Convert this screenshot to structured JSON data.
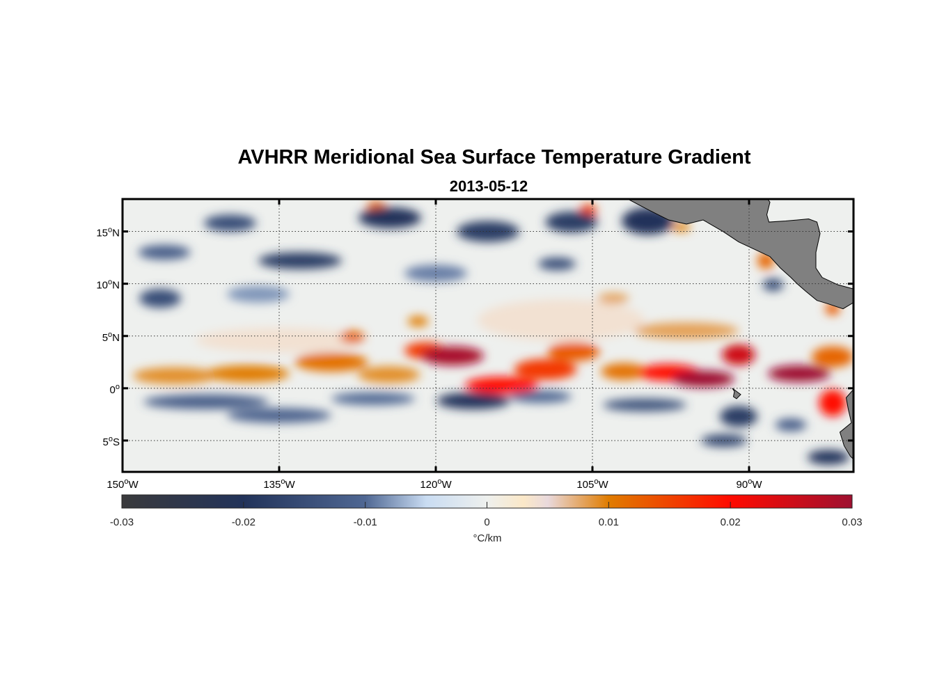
{
  "chart_data": {
    "type": "heatmap",
    "title": "AVHRR Meridional Sea Surface Temperature Gradient",
    "subtitle": "2013-05-12",
    "lon_range": [
      -150,
      -80
    ],
    "lat_range": [
      -8,
      18.1
    ],
    "x_ticks": [
      {
        "lon": -150,
        "deg": "150",
        "hem": "W"
      },
      {
        "lon": -135,
        "deg": "135",
        "hem": "W"
      },
      {
        "lon": -120,
        "deg": "120",
        "hem": "W"
      },
      {
        "lon": -105,
        "deg": "105",
        "hem": "W"
      },
      {
        "lon": -90,
        "deg": "90",
        "hem": "W"
      }
    ],
    "y_ticks": [
      {
        "lat": 15,
        "deg": "15",
        "hem": "N"
      },
      {
        "lat": 10,
        "deg": "10",
        "hem": "N"
      },
      {
        "lat": 5,
        "deg": "5",
        "hem": "N"
      },
      {
        "lat": 0,
        "deg": "0",
        "hem": ""
      },
      {
        "lat": -5,
        "deg": "5",
        "hem": "S"
      }
    ],
    "grid": true,
    "colorbar": {
      "range": [
        -0.03,
        0.03
      ],
      "ticks": [
        "-0.03",
        "-0.02",
        "-0.01",
        "0",
        "0.01",
        "0.02",
        "0.03"
      ],
      "tick_values": [
        -0.03,
        -0.02,
        -0.01,
        0,
        0.01,
        0.02,
        0.03
      ],
      "label": "°C/km",
      "placement": "bottom",
      "stops": [
        [
          -0.03,
          "#3a3a3c"
        ],
        [
          -0.02,
          "#22335a"
        ],
        [
          -0.01,
          "#4f6793"
        ],
        [
          -0.005,
          "#c9dcf2"
        ],
        [
          0,
          "#eef0ee"
        ],
        [
          0.003,
          "#fbe8c8"
        ],
        [
          0.005,
          "#e9d9dc"
        ],
        [
          0.01,
          "#e07c00"
        ],
        [
          0.02,
          "#ff0a00"
        ],
        [
          0.03,
          "#9e1030"
        ]
      ]
    },
    "background_value": 0,
    "features": [
      {
        "lon": -118.4,
        "lat": 3.1,
        "v": 0.029,
        "rlon": 3.0,
        "rlat": 0.9
      },
      {
        "lon": -121.0,
        "lat": 3.6,
        "v": 0.016,
        "rlon": 2.0,
        "rlat": 0.8
      },
      {
        "lon": -113.7,
        "lat": 0.3,
        "v": 0.02,
        "rlon": 3.5,
        "rlat": 0.8
      },
      {
        "lon": -109.5,
        "lat": 1.8,
        "v": 0.016,
        "rlon": 3.0,
        "rlat": 1.0
      },
      {
        "lon": -106.8,
        "lat": 3.5,
        "v": 0.013,
        "rlon": 2.5,
        "rlat": 0.9
      },
      {
        "lon": -102.0,
        "lat": 1.6,
        "v": 0.011,
        "rlon": 2.2,
        "rlat": 0.8
      },
      {
        "lon": -97.7,
        "lat": 1.5,
        "v": 0.02,
        "rlon": 3.0,
        "rlat": 0.8
      },
      {
        "lon": -94.4,
        "lat": 0.9,
        "v": 0.03,
        "rlon": 3.0,
        "rlat": 0.8
      },
      {
        "lon": -91.0,
        "lat": 3.2,
        "v": 0.025,
        "rlon": 1.6,
        "rlat": 1.0
      },
      {
        "lon": -85.2,
        "lat": 1.4,
        "v": 0.03,
        "rlon": 3.0,
        "rlat": 0.8
      },
      {
        "lon": -82.0,
        "lat": 3.0,
        "v": 0.012,
        "rlon": 2.0,
        "rlat": 1.0
      },
      {
        "lon": -82.0,
        "lat": -1.4,
        "v": 0.02,
        "rlon": 1.3,
        "rlat": 1.3
      },
      {
        "lon": -145.0,
        "lat": 1.2,
        "v": 0.009,
        "rlon": 4.0,
        "rlat": 0.8
      },
      {
        "lon": -138.0,
        "lat": 1.4,
        "v": 0.01,
        "rlon": 4.0,
        "rlat": 0.8
      },
      {
        "lon": -130.0,
        "lat": 2.5,
        "v": 0.011,
        "rlon": 3.5,
        "rlat": 0.9
      },
      {
        "lon": -124.5,
        "lat": 1.3,
        "v": 0.009,
        "rlon": 3.0,
        "rlat": 0.8
      },
      {
        "lon": -128.0,
        "lat": 4.9,
        "v": 0.012,
        "rlon": 1.2,
        "rlat": 0.6
      },
      {
        "lon": -121.7,
        "lat": 6.4,
        "v": 0.01,
        "rlon": 1.0,
        "rlat": 0.5
      },
      {
        "lon": -135.0,
        "lat": 4.6,
        "v": 0.004,
        "rlon": 8.0,
        "rlat": 1.2
      },
      {
        "lon": -108.0,
        "lat": 6.5,
        "v": 0.004,
        "rlon": 8.0,
        "rlat": 2.0
      },
      {
        "lon": -96.0,
        "lat": 5.5,
        "v": 0.008,
        "rlon": 5.0,
        "rlat": 0.8
      },
      {
        "lon": -103.0,
        "lat": 8.6,
        "v": 0.008,
        "rlon": 1.5,
        "rlat": 0.5
      },
      {
        "lon": -142.0,
        "lat": -1.3,
        "v": -0.012,
        "rlon": 6.0,
        "rlat": 0.7
      },
      {
        "lon": -135.0,
        "lat": -2.6,
        "v": -0.011,
        "rlon": 5.0,
        "rlat": 0.7
      },
      {
        "lon": -126.0,
        "lat": -1.0,
        "v": -0.01,
        "rlon": 4.0,
        "rlat": 0.6
      },
      {
        "lon": -116.4,
        "lat": -1.2,
        "v": -0.02,
        "rlon": 3.5,
        "rlat": 0.8
      },
      {
        "lon": -110.0,
        "lat": -0.8,
        "v": -0.01,
        "rlon": 3.0,
        "rlat": 0.6
      },
      {
        "lon": -100.0,
        "lat": -1.6,
        "v": -0.014,
        "rlon": 4.0,
        "rlat": 0.6
      },
      {
        "lon": -91.0,
        "lat": -2.7,
        "v": -0.018,
        "rlon": 1.8,
        "rlat": 1.0
      },
      {
        "lon": -92.4,
        "lat": -5.0,
        "v": -0.016,
        "rlon": 2.2,
        "rlat": 0.6
      },
      {
        "lon": -82.4,
        "lat": -6.6,
        "v": -0.02,
        "rlon": 2.0,
        "rlat": 0.7
      },
      {
        "lon": -86.0,
        "lat": -3.5,
        "v": -0.012,
        "rlon": 1.5,
        "rlat": 0.6
      },
      {
        "lon": -133.0,
        "lat": 12.2,
        "v": -0.018,
        "rlon": 4.0,
        "rlat": 0.8
      },
      {
        "lon": -146.4,
        "lat": 8.6,
        "v": -0.015,
        "rlon": 2.0,
        "rlat": 0.9
      },
      {
        "lon": -124.4,
        "lat": 16.3,
        "v": -0.02,
        "rlon": 3.0,
        "rlat": 1.0
      },
      {
        "lon": -115.0,
        "lat": 15.0,
        "v": -0.018,
        "rlon": 3.0,
        "rlat": 1.0
      },
      {
        "lon": -107.0,
        "lat": 15.9,
        "v": -0.018,
        "rlon": 2.5,
        "rlat": 1.0
      },
      {
        "lon": -99.7,
        "lat": 16.0,
        "v": -0.02,
        "rlon": 2.5,
        "rlat": 1.3
      },
      {
        "lon": -139.7,
        "lat": 15.8,
        "v": -0.015,
        "rlon": 2.5,
        "rlat": 0.8
      },
      {
        "lon": -146.0,
        "lat": 13.0,
        "v": -0.012,
        "rlon": 2.5,
        "rlat": 0.7
      },
      {
        "lon": -108.4,
        "lat": 11.9,
        "v": -0.015,
        "rlon": 1.8,
        "rlat": 0.6
      },
      {
        "lon": -120.0,
        "lat": 11.0,
        "v": -0.009,
        "rlon": 3.0,
        "rlat": 0.8
      },
      {
        "lon": -87.7,
        "lat": 9.9,
        "v": -0.015,
        "rlon": 1.0,
        "rlat": 0.6
      },
      {
        "lon": -137.0,
        "lat": 9.0,
        "v": -0.008,
        "rlon": 3.0,
        "rlat": 0.8
      },
      {
        "lon": -125.7,
        "lat": 17.4,
        "v": 0.012,
        "rlon": 0.9,
        "rlat": 0.5
      },
      {
        "lon": -105.4,
        "lat": 17.0,
        "v": 0.015,
        "rlon": 0.8,
        "rlat": 0.6
      },
      {
        "lon": -88.4,
        "lat": 12.2,
        "v": 0.012,
        "rlon": 0.8,
        "rlat": 0.8
      },
      {
        "lon": -82.0,
        "lat": 7.6,
        "v": 0.013,
        "rlon": 0.7,
        "rlat": 0.6
      },
      {
        "lon": -96.5,
        "lat": 15.4,
        "v": 0.01,
        "rlon": 0.9,
        "rlat": 0.4
      }
    ],
    "land": [
      [
        [
          -101.8,
          18.2
        ],
        [
          -99.5,
          17.0
        ],
        [
          -97.7,
          16.1
        ],
        [
          -96.0,
          15.7
        ],
        [
          -94.4,
          16.1
        ],
        [
          -92.5,
          15.0
        ],
        [
          -91.0,
          14.0
        ],
        [
          -89.5,
          13.3
        ],
        [
          -88.0,
          12.6
        ],
        [
          -87.0,
          11.5
        ],
        [
          -86.0,
          10.6
        ],
        [
          -85.4,
          10.0
        ],
        [
          -84.6,
          9.3
        ],
        [
          -83.5,
          8.4
        ],
        [
          -82.5,
          8.1
        ],
        [
          -81.0,
          7.6
        ],
        [
          -80.0,
          8.2
        ],
        [
          -80.0,
          9.5
        ],
        [
          -81.5,
          9.9
        ],
        [
          -83.0,
          10.6
        ],
        [
          -83.6,
          11.5
        ],
        [
          -83.6,
          13.0
        ],
        [
          -83.2,
          14.8
        ],
        [
          -83.5,
          15.9
        ],
        [
          -84.3,
          16.2
        ],
        [
          -86.5,
          16.0
        ],
        [
          -88.1,
          15.9
        ],
        [
          -88.3,
          16.6
        ],
        [
          -88.0,
          17.8
        ],
        [
          -88.3,
          18.2
        ]
      ],
      [
        [
          -80.0,
          -0.1
        ],
        [
          -80.7,
          -0.9
        ],
        [
          -80.5,
          -2.0
        ],
        [
          -80.2,
          -3.3
        ],
        [
          -81.3,
          -4.2
        ],
        [
          -80.9,
          -5.5
        ],
        [
          -80.3,
          -6.5
        ],
        [
          -80.0,
          -6.8
        ]
      ],
      [
        [
          -91.6,
          0.0
        ],
        [
          -91.2,
          -0.3
        ],
        [
          -90.8,
          -0.6
        ],
        [
          -91.2,
          -1.0
        ],
        [
          -91.5,
          -0.8
        ],
        [
          -91.4,
          -0.3
        ]
      ]
    ]
  }
}
